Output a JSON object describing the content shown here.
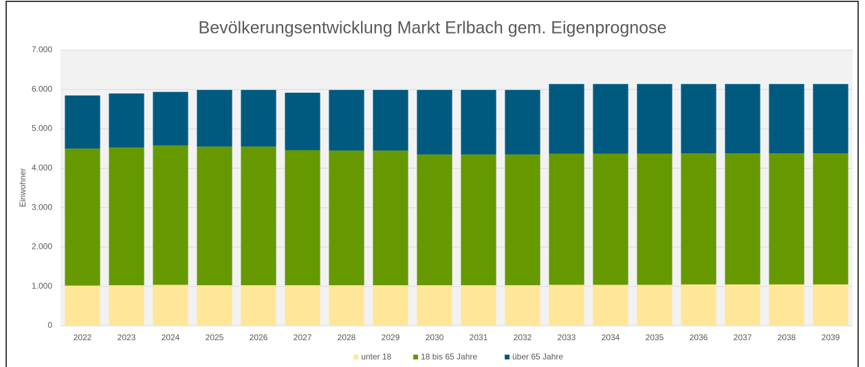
{
  "chart_data": {
    "type": "stacked_bar",
    "title": "Bevölkerungsentwicklung Markt Erlbach gem. Eigenprognose",
    "y_label": "Einwohner",
    "categories": [
      "2022",
      "2023",
      "2024",
      "2025",
      "2026",
      "2027",
      "2028",
      "2029",
      "2030",
      "2031",
      "2032",
      "2033",
      "2034",
      "2035",
      "2036",
      "2037",
      "2038",
      "2039"
    ],
    "series": [
      {
        "name": "unter 18",
        "color": "#ffe699",
        "values": [
          1020,
          1030,
          1040,
          1030,
          1030,
          1030,
          1030,
          1030,
          1030,
          1030,
          1030,
          1040,
          1040,
          1040,
          1050,
          1050,
          1050,
          1050
        ]
      },
      {
        "name": "18 bis 65 Jahre",
        "color": "#669900",
        "values": [
          3480,
          3500,
          3540,
          3520,
          3520,
          3430,
          3420,
          3420,
          3320,
          3320,
          3320,
          3330,
          3330,
          3330,
          3330,
          3330,
          3330,
          3330
        ]
      },
      {
        "name": "über 65 Jahre",
        "color": "#005a80",
        "values": [
          1350,
          1370,
          1360,
          1440,
          1440,
          1460,
          1540,
          1540,
          1640,
          1640,
          1640,
          1770,
          1770,
          1770,
          1760,
          1760,
          1760,
          1760
        ]
      }
    ],
    "ylim": [
      0,
      7000
    ],
    "yticks": [
      0,
      {
        "value": 1000,
        "label": "1.000"
      },
      {
        "value": 2000,
        "label": "2.000"
      },
      {
        "value": 3000,
        "label": "3.000"
      },
      {
        "value": 4000,
        "label": "4.000"
      },
      {
        "value": 5000,
        "label": "5.000"
      },
      {
        "value": 6000,
        "label": "6.000"
      },
      {
        "value": 7000,
        "label": "7.000"
      }
    ],
    "grid": true,
    "legend": "bottom"
  }
}
